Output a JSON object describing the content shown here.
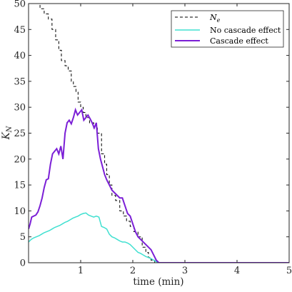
{
  "chart_data": {
    "type": "line",
    "xlabel": "time (min)",
    "ylabel": "K",
    "ylabel_sub": "N",
    "xlim": [
      0,
      5
    ],
    "ylim": [
      0,
      50
    ],
    "xticks": [
      1,
      2,
      3,
      4,
      5
    ],
    "yticks": [
      0,
      5,
      10,
      15,
      20,
      25,
      30,
      35,
      40,
      45,
      50
    ],
    "grid": false,
    "legend_position": "top-right",
    "series": [
      {
        "name": "N",
        "name_sub": "e",
        "color": "#000000",
        "style": "dashed",
        "x": [
          0.15,
          0.22,
          0.22,
          0.3,
          0.3,
          0.38,
          0.38,
          0.45,
          0.45,
          0.52,
          0.52,
          0.58,
          0.58,
          0.63,
          0.63,
          0.7,
          0.7,
          0.76,
          0.76,
          0.82,
          0.82,
          0.86,
          0.86,
          0.91,
          0.91,
          0.95,
          0.95,
          1.0,
          1.0,
          1.05,
          1.05,
          1.1,
          1.1,
          1.17,
          1.17,
          1.25,
          1.25,
          1.32,
          1.32,
          1.4,
          1.4,
          1.46,
          1.46,
          1.5,
          1.5,
          1.55,
          1.55,
          1.6,
          1.6,
          1.67,
          1.67,
          1.75,
          1.75,
          1.82,
          1.82,
          1.88,
          1.88,
          1.95,
          1.95,
          2.02,
          2.02,
          2.1,
          2.1,
          2.18,
          2.18,
          2.25,
          2.25,
          2.3,
          2.3,
          2.35,
          2.35,
          2.42,
          2.42,
          2.48,
          2.48,
          5.0
        ],
        "y": [
          50,
          50,
          49,
          49,
          48,
          48,
          47,
          47,
          45,
          45,
          43,
          43,
          41,
          41,
          39,
          39,
          38,
          38,
          37,
          37,
          35,
          35,
          34,
          34,
          33,
          33,
          31,
          31,
          30,
          30,
          29,
          29,
          28,
          28,
          27,
          27,
          26,
          26,
          25,
          25,
          21,
          21,
          19,
          19,
          17,
          17,
          15,
          15,
          13,
          13,
          12,
          12,
          10,
          10,
          9,
          9,
          8,
          8,
          7,
          7,
          6,
          6,
          5,
          5,
          3,
          3,
          2,
          2,
          1,
          1,
          0.5,
          0.5,
          0,
          0,
          0,
          0
        ]
      },
      {
        "name": "No cascade effect",
        "color": "#40E0D0",
        "style": "solid",
        "x": [
          0,
          0.05,
          0.1,
          0.15,
          0.2,
          0.25,
          0.3,
          0.35,
          0.4,
          0.45,
          0.5,
          0.55,
          0.6,
          0.65,
          0.7,
          0.75,
          0.8,
          0.85,
          0.9,
          0.95,
          1.0,
          1.05,
          1.1,
          1.15,
          1.2,
          1.25,
          1.3,
          1.35,
          1.4,
          1.45,
          1.5,
          1.55,
          1.6,
          1.65,
          1.7,
          1.75,
          1.8,
          1.85,
          1.9,
          1.95,
          2.0,
          2.05,
          2.1,
          2.15,
          2.2,
          2.25,
          2.3,
          2.35,
          2.4,
          2.45,
          2.48,
          2.5,
          5.0
        ],
        "y": [
          4.0,
          4.5,
          4.8,
          5.0,
          5.2,
          5.5,
          5.8,
          6.0,
          6.2,
          6.5,
          6.8,
          7.0,
          7.2,
          7.5,
          7.8,
          8.0,
          8.3,
          8.6,
          8.8,
          9.0,
          9.3,
          9.5,
          9.6,
          9.2,
          9.0,
          8.8,
          9.0,
          8.8,
          7.0,
          6.8,
          6.5,
          5.5,
          5.0,
          4.8,
          4.5,
          4.2,
          4.0,
          4.0,
          3.8,
          3.5,
          3.0,
          2.5,
          2.0,
          1.8,
          1.5,
          1.2,
          1.0,
          0.8,
          0.5,
          0.2,
          0.0,
          0.0,
          0.0
        ]
      },
      {
        "name": "Cascade effect",
        "color": "#7B1FD6",
        "style": "solid",
        "x": [
          0,
          0.03,
          0.06,
          0.1,
          0.14,
          0.18,
          0.22,
          0.26,
          0.3,
          0.34,
          0.38,
          0.42,
          0.46,
          0.5,
          0.54,
          0.58,
          0.62,
          0.66,
          0.7,
          0.74,
          0.78,
          0.82,
          0.86,
          0.9,
          0.94,
          0.98,
          1.02,
          1.06,
          1.1,
          1.14,
          1.18,
          1.22,
          1.26,
          1.3,
          1.34,
          1.38,
          1.42,
          1.46,
          1.5,
          1.55,
          1.6,
          1.65,
          1.7,
          1.75,
          1.8,
          1.85,
          1.9,
          1.95,
          2.0,
          2.05,
          2.1,
          2.15,
          2.2,
          2.25,
          2.3,
          2.35,
          2.4,
          2.45,
          2.5,
          5.0
        ],
        "y": [
          6.5,
          7.5,
          8.8,
          9.0,
          9.2,
          9.8,
          11.0,
          12.5,
          14.5,
          16.0,
          16.2,
          19.0,
          21.0,
          21.5,
          22.0,
          21.0,
          22.5,
          20.0,
          25.0,
          27.0,
          27.5,
          26.8,
          28.0,
          29.5,
          28.5,
          29.0,
          29.5,
          27.5,
          28.0,
          28.5,
          27.8,
          27.0,
          26.0,
          27.0,
          22.0,
          20.0,
          18.5,
          17.0,
          16.0,
          15.0,
          14.0,
          13.5,
          13.0,
          12.5,
          12.5,
          11.0,
          9.5,
          9.0,
          7.5,
          6.0,
          5.0,
          4.5,
          4.0,
          3.5,
          3.0,
          2.5,
          1.5,
          0.5,
          0.0,
          0.0
        ]
      }
    ]
  }
}
